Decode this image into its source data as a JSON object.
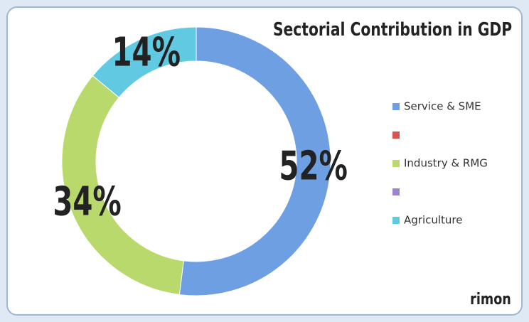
{
  "chart_data": {
    "type": "donut",
    "title": "Sectorial Contribution in GDP",
    "categories": [
      "Service & SME",
      null,
      "Industry & RMG",
      null,
      "Agriculture"
    ],
    "values": [
      52,
      0,
      34,
      0,
      14
    ],
    "value_labels": [
      "52%",
      null,
      "34%",
      null,
      "14%"
    ],
    "colors": [
      "#6e9fe2",
      "#d9534f",
      "#b9d96c",
      "#9d82cf",
      "#62c9e3"
    ],
    "annotation": "rimon",
    "legend": "right"
  }
}
